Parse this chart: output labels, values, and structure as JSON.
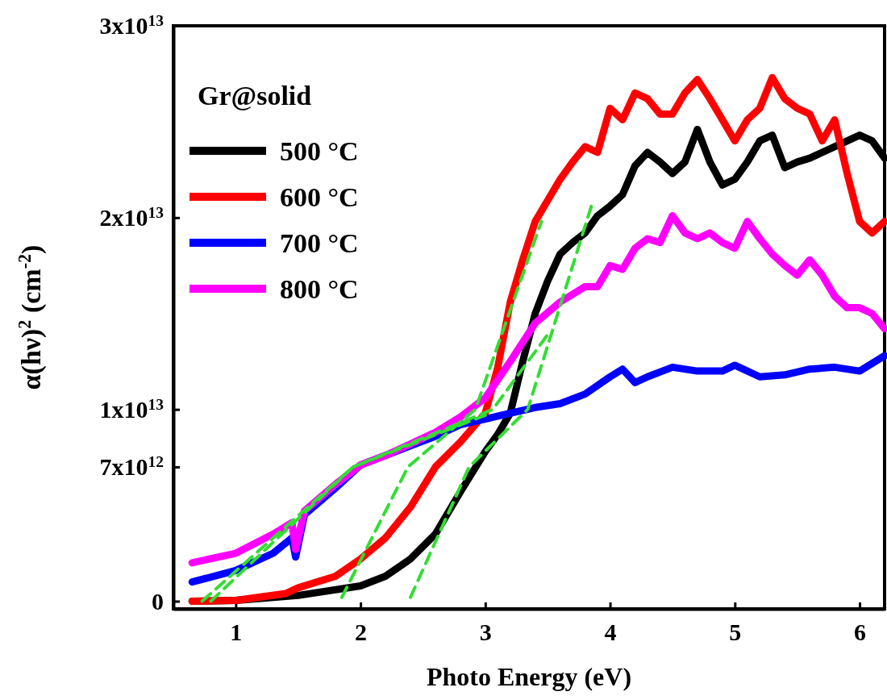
{
  "chart_data": {
    "type": "line",
    "xlabel": "Photo Energy (eV)",
    "ylabel": "α(hν)$^{2}$ (cm$^{-2}$)",
    "legend": "top left",
    "legend_title": "Gr@solid",
    "xlim": [
      0.5,
      6.2
    ],
    "xticks": [
      1,
      2,
      3,
      4,
      5,
      6
    ],
    "ylim": [
      -400000000000.0,
      30000000000000.0
    ],
    "yticks": [
      {
        "value": 0,
        "label": "0"
      },
      {
        "value": 7000000000000.0,
        "label": "7x10$^{12}$"
      },
      {
        "value": 10000000000000.0,
        "label": "1x10$^{13}$"
      },
      {
        "value": 20000000000000.0,
        "label": "2x10$^{13}$"
      },
      {
        "value": 30000000000000.0,
        "label": "3x10$^{13}$"
      }
    ],
    "series": [
      {
        "name": "500 °C",
        "color": "#000000",
        "x": [
          0.65,
          1.0,
          1.5,
          2.0,
          2.2,
          2.4,
          2.6,
          2.8,
          3.0,
          3.1,
          3.2,
          3.3,
          3.4,
          3.5,
          3.6,
          3.7,
          3.8,
          3.9,
          4.0,
          4.1,
          4.2,
          4.3,
          4.4,
          4.5,
          4.6,
          4.7,
          4.8,
          4.9,
          5.0,
          5.1,
          5.2,
          5.3,
          5.4,
          5.5,
          5.6,
          5.8,
          6.0,
          6.1,
          6.2
        ],
        "values": [
          0,
          40000000000.0,
          300000000000.0,
          800000000000.0,
          1300000000000.0,
          2200000000000.0,
          3500000000000.0,
          5700000000000.0,
          7800000000000.0,
          8700000000000.0,
          9800000000000.0,
          12500000000000.0,
          15000000000000.0,
          16700000000000.0,
          18100000000000.0,
          18700000000000.0,
          19200000000000.0,
          20100000000000.0,
          20600000000000.0,
          21200000000000.0,
          22700000000000.0,
          23400000000000.0,
          22900000000000.0,
          22300000000000.0,
          22900000000000.0,
          24600000000000.0,
          22900000000000.0,
          21700000000000.0,
          22000000000000.0,
          22900000000000.0,
          24000000000000.0,
          24300000000000.0,
          22600000000000.0,
          22900000000000.0,
          23100000000000.0,
          23700000000000.0,
          24300000000000.0,
          24000000000000.0,
          23100000000000.0
        ]
      },
      {
        "name": "600 °C",
        "color": "#ff0000",
        "x": [
          0.65,
          1.0,
          1.4,
          1.5,
          1.8,
          2.0,
          2.2,
          2.4,
          2.6,
          2.8,
          3.0,
          3.1,
          3.2,
          3.3,
          3.4,
          3.5,
          3.6,
          3.7,
          3.8,
          3.9,
          4.0,
          4.1,
          4.2,
          4.3,
          4.4,
          4.5,
          4.6,
          4.7,
          4.8,
          4.9,
          5.0,
          5.1,
          5.2,
          5.3,
          5.4,
          5.5,
          5.6,
          5.7,
          5.8,
          5.9,
          6.0,
          6.1,
          6.2
        ],
        "values": [
          0,
          40000000000.0,
          400000000000.0,
          700000000000.0,
          1300000000000.0,
          2200000000000.0,
          3300000000000.0,
          4900000000000.0,
          7000000000000.0,
          8300000000000.0,
          9800000000000.0,
          12200000000000.0,
          15600000000000.0,
          17800000000000.0,
          19800000000000.0,
          20900000000000.0,
          22000000000000.0,
          22900000000000.0,
          23700000000000.0,
          23400000000000.0,
          25700000000000.0,
          25100000000000.0,
          26500000000000.0,
          26200000000000.0,
          25400000000000.0,
          25400000000000.0,
          26500000000000.0,
          27200000000000.0,
          26200000000000.0,
          25100000000000.0,
          24000000000000.0,
          25100000000000.0,
          25700000000000.0,
          27300000000000.0,
          26200000000000.0,
          25700000000000.0,
          25400000000000.0,
          24000000000000.0,
          25100000000000.0,
          22300000000000.0,
          19800000000000.0,
          19200000000000.0,
          19800000000000.0
        ]
      },
      {
        "name": "700 °C",
        "color": "#0000ff",
        "x": [
          0.65,
          1.0,
          1.3,
          1.45,
          1.48,
          1.55,
          1.8,
          2.0,
          2.2,
          2.4,
          2.6,
          2.8,
          3.0,
          3.2,
          3.4,
          3.6,
          3.8,
          4.0,
          4.1,
          4.2,
          4.3,
          4.5,
          4.7,
          4.9,
          5.0,
          5.2,
          5.4,
          5.6,
          5.8,
          6.0,
          6.2
        ],
        "values": [
          1000000000000.0,
          1600000000000.0,
          2500000000000.0,
          3300000000000.0,
          2300000000000.0,
          4500000000000.0,
          5900000000000.0,
          7100000000000.0,
          7600000000000.0,
          8100000000000.0,
          8600000000000.0,
          9200000000000.0,
          9500000000000.0,
          9800000000000.0,
          10100000000000.0,
          10300000000000.0,
          10800000000000.0,
          11700000000000.0,
          12100000000000.0,
          11400000000000.0,
          11700000000000.0,
          12200000000000.0,
          12000000000000.0,
          12000000000000.0,
          12300000000000.0,
          11700000000000.0,
          11800000000000.0,
          12100000000000.0,
          12200000000000.0,
          12000000000000.0,
          12800000000000.0
        ]
      },
      {
        "name": "800 °C",
        "color": "#ff00ff",
        "x": [
          0.65,
          1.0,
          1.3,
          1.45,
          1.48,
          1.55,
          1.8,
          2.0,
          2.2,
          2.4,
          2.6,
          2.8,
          3.0,
          3.2,
          3.4,
          3.6,
          3.8,
          3.9,
          4.0,
          4.1,
          4.2,
          4.3,
          4.4,
          4.5,
          4.6,
          4.7,
          4.8,
          4.9,
          5.0,
          5.1,
          5.2,
          5.3,
          5.4,
          5.5,
          5.6,
          5.7,
          5.8,
          5.9,
          6.0,
          6.1,
          6.2
        ],
        "values": [
          2000000000000.0,
          2500000000000.0,
          3500000000000.0,
          4100000000000.0,
          2700000000000.0,
          4700000000000.0,
          6100000000000.0,
          7100000000000.0,
          7600000000000.0,
          8200000000000.0,
          8800000000000.0,
          9600000000000.0,
          10600000000000.0,
          12500000000000.0,
          14500000000000.0,
          15600000000000.0,
          16400000000000.0,
          16400000000000.0,
          17500000000000.0,
          17300000000000.0,
          18400000000000.0,
          18900000000000.0,
          18700000000000.0,
          20100000000000.0,
          19200000000000.0,
          18900000000000.0,
          19200000000000.0,
          18700000000000.0,
          18400000000000.0,
          19800000000000.0,
          18900000000000.0,
          18100000000000.0,
          17500000000000.0,
          17000000000000.0,
          17800000000000.0,
          17000000000000.0,
          15900000000000.0,
          15300000000000.0,
          15300000000000.0,
          15000000000000.0,
          14200000000000.0
        ]
      },
      {
        "type": "line",
        "color": "#33dd33",
        "line_style": "dashed",
        "x": [
          2.4,
          2.87,
          3.34,
          3.85
        ],
        "values": [
          200000000000.0,
          7000000000000.0,
          10000000000000.0,
          20600000000000.0
        ]
      },
      {
        "type": "line",
        "color": "#33dd33",
        "line_style": "dashed",
        "x": [
          1.85,
          2.38,
          2.92,
          3.45
        ],
        "values": [
          200000000000.0,
          7000000000000.0,
          10000000000000.0,
          19800000000000.0
        ]
      },
      {
        "type": "line",
        "color": "#33dd33",
        "line_style": "dashed",
        "x": [
          0.73,
          1.94,
          3.0
        ],
        "values": [
          0,
          7000000000000.0,
          9700000000000.0
        ]
      },
      {
        "type": "line",
        "color": "#33dd33",
        "line_style": "dashed",
        "x": [
          0.8,
          1.94,
          3.06,
          3.5
        ],
        "values": [
          0,
          7000000000000.0,
          10000000000000.0,
          13900000000000.0
        ]
      }
    ]
  }
}
